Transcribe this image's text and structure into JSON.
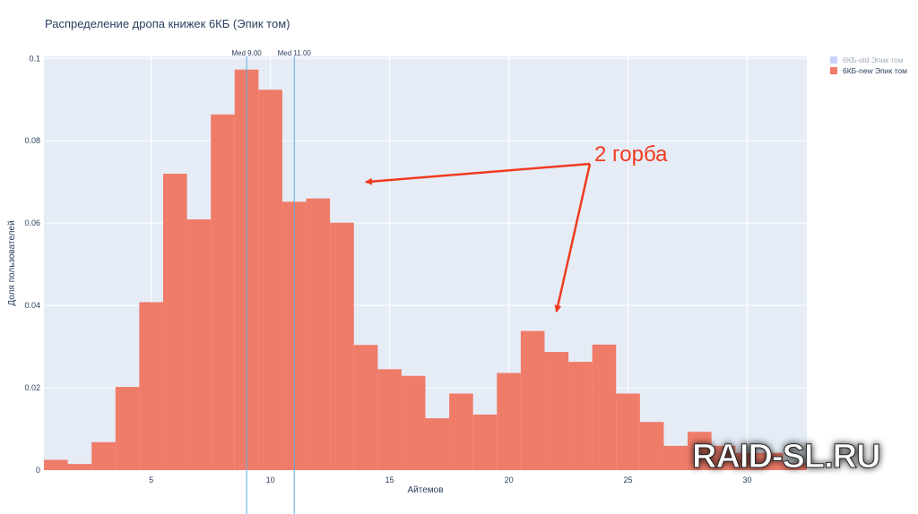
{
  "chart_data": {
    "type": "bar",
    "title": "Распределение дропа книжек 6КБ (Эпик том)",
    "xlabel": "Айтемов",
    "ylabel": "Доля пользователей",
    "xlim": [
      0.5,
      32.5
    ],
    "ylim": [
      0,
      0.1005
    ],
    "xticks": [
      5,
      10,
      15,
      20,
      25,
      30
    ],
    "yticks": [
      0,
      0.02,
      0.04,
      0.06,
      0.08,
      0.1
    ],
    "ytick_labels": [
      "0",
      "0.02",
      "0.04",
      "0.06",
      "0.08",
      "0.1"
    ],
    "grid": true,
    "legend_position": "top-right",
    "series": [
      {
        "name": "6КБ-old Эпик том",
        "color": "#b4bef8",
        "visible": false,
        "x": [],
        "values": []
      },
      {
        "name": "6КБ-new Эпик том",
        "color": "#ef7b69",
        "visible": true,
        "x": [
          1,
          2,
          3,
          4,
          5,
          6,
          7,
          8,
          9,
          10,
          11,
          12,
          13,
          14,
          15,
          16,
          17,
          18,
          19,
          20,
          21,
          22,
          23,
          24,
          25,
          26,
          27,
          28,
          29,
          30,
          31,
          32
        ],
        "values": [
          0.0025,
          0.0015,
          0.0068,
          0.0202,
          0.0408,
          0.072,
          0.0609,
          0.0864,
          0.0973,
          0.0924,
          0.0652,
          0.066,
          0.0601,
          0.0304,
          0.0245,
          0.0229,
          0.0126,
          0.0186,
          0.0135,
          0.0236,
          0.0338,
          0.0287,
          0.0263,
          0.0305,
          0.0186,
          0.0117,
          0.0059,
          0.0093,
          0.0059,
          0.0042,
          0.0042,
          0.0017
        ]
      }
    ],
    "medians": [
      {
        "x": 9.0,
        "label": "Med 9.00"
      },
      {
        "x": 11.0,
        "label": "Med 11.00"
      }
    ],
    "annotation": {
      "text": "2 горба",
      "targets": [
        {
          "x": 14.0,
          "y": 0.07
        },
        {
          "x": 22.0,
          "y": 0.0385
        }
      ]
    }
  },
  "watermark": "RAID-SL.RU",
  "colors": {
    "plot_bg": "#e5ecf6",
    "grid": "#ffffff",
    "text": "#2a3f5f",
    "median_line": "#5aaee0",
    "annotation": "#f13a1f"
  }
}
